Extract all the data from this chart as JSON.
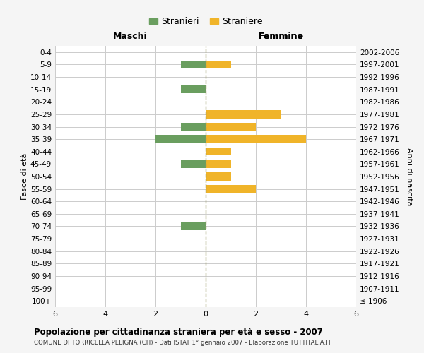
{
  "age_groups": [
    "100+",
    "95-99",
    "90-94",
    "85-89",
    "80-84",
    "75-79",
    "70-74",
    "65-69",
    "60-64",
    "55-59",
    "50-54",
    "45-49",
    "40-44",
    "35-39",
    "30-34",
    "25-29",
    "20-24",
    "15-19",
    "10-14",
    "5-9",
    "0-4"
  ],
  "birth_years": [
    "≤ 1906",
    "1907-1911",
    "1912-1916",
    "1917-1921",
    "1922-1926",
    "1927-1931",
    "1932-1936",
    "1937-1941",
    "1942-1946",
    "1947-1951",
    "1952-1956",
    "1957-1961",
    "1962-1966",
    "1967-1971",
    "1972-1976",
    "1977-1981",
    "1982-1986",
    "1987-1991",
    "1992-1996",
    "1997-2001",
    "2002-2006"
  ],
  "males": [
    0,
    0,
    0,
    0,
    0,
    0,
    1,
    0,
    0,
    0,
    0,
    1,
    0,
    2,
    1,
    0,
    0,
    1,
    0,
    1,
    0
  ],
  "females": [
    0,
    0,
    0,
    0,
    0,
    0,
    0,
    0,
    0,
    2,
    1,
    1,
    1,
    4,
    2,
    3,
    0,
    0,
    0,
    1,
    0
  ],
  "male_color": "#6a9e5f",
  "female_color": "#f0b429",
  "title": "Popolazione per cittadinanza straniera per età e sesso - 2007",
  "subtitle": "COMUNE DI TORRICELLA PELIGNA (CH) - Dati ISTAT 1° gennaio 2007 - Elaborazione TUTTITALIA.IT",
  "ylabel_left": "Fasce di età",
  "ylabel_right": "Anni di nascita",
  "xlabel_maschi": "Maschi",
  "xlabel_femmine": "Femmine",
  "legend_male": "Stranieri",
  "legend_female": "Straniere",
  "xlim": 6,
  "bg_color": "#f5f5f5",
  "plot_bg_color": "#ffffff",
  "grid_color": "#cccccc",
  "axis_center_color": "#999966",
  "bar_height": 0.65
}
